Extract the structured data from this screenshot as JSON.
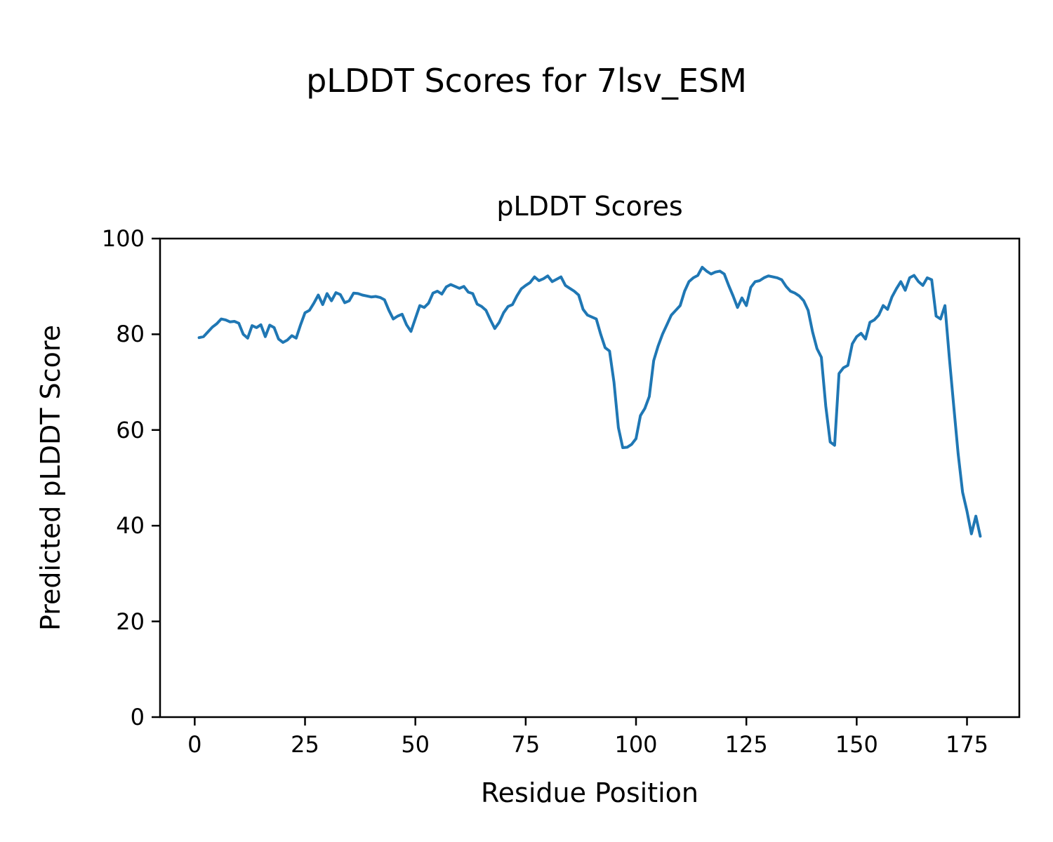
{
  "chart_data": {
    "type": "line",
    "suptitle": "pLDDT Scores for 7lsv_ESM",
    "title": "pLDDT Scores",
    "xlabel": "Residue Position",
    "ylabel": "Predicted pLDDT Score",
    "legend": "none",
    "grid": false,
    "line_color": "#1f77b4",
    "line_width": 4,
    "x_start": 1,
    "xlim": [
      -7.85,
      186.85
    ],
    "ylim": [
      0,
      100
    ],
    "x_ticks": [
      0,
      25,
      50,
      75,
      100,
      125,
      150,
      175
    ],
    "y_ticks": [
      0,
      20,
      40,
      60,
      80,
      100
    ],
    "values": [
      79.3,
      79.5,
      80.5,
      81.5,
      82.2,
      83.2,
      83.0,
      82.6,
      82.7,
      82.3,
      80.0,
      79.2,
      81.8,
      81.4,
      82.0,
      79.5,
      81.9,
      81.4,
      79.0,
      78.3,
      78.8,
      79.7,
      79.2,
      82.0,
      84.5,
      85.0,
      86.5,
      88.2,
      86.2,
      88.5,
      87.0,
      88.7,
      88.3,
      86.6,
      87.0,
      88.6,
      88.5,
      88.2,
      88.0,
      87.8,
      87.9,
      87.7,
      87.2,
      85.0,
      83.2,
      83.8,
      84.2,
      82.0,
      80.6,
      83.3,
      86.0,
      85.6,
      86.5,
      88.6,
      89.0,
      88.4,
      89.9,
      90.4,
      90.0,
      89.6,
      90.0,
      88.8,
      88.5,
      86.3,
      85.8,
      85.0,
      83.0,
      81.2,
      82.5,
      84.5,
      85.8,
      86.2,
      88.0,
      89.5,
      90.2,
      90.8,
      92.0,
      91.2,
      91.6,
      92.2,
      91.0,
      91.5,
      92.0,
      90.2,
      89.6,
      89.0,
      88.2,
      85.2,
      84.0,
      83.6,
      83.2,
      80.0,
      77.2,
      76.5,
      70.0,
      60.5,
      56.3,
      56.4,
      57.0,
      58.2,
      63.0,
      64.5,
      67.0,
      74.5,
      77.5,
      80.0,
      82.0,
      84.0,
      85.0,
      86.0,
      89.0,
      91.0,
      91.8,
      92.3,
      94.0,
      93.2,
      92.6,
      93.0,
      93.2,
      92.6,
      90.2,
      88.0,
      85.6,
      87.6,
      86.0,
      89.8,
      91.0,
      91.2,
      91.8,
      92.2,
      92.0,
      91.8,
      91.4,
      90.0,
      89.0,
      88.6,
      88.0,
      87.0,
      85.0,
      80.5,
      77.0,
      75.2,
      65.0,
      57.5,
      56.8,
      71.8,
      73.0,
      73.5,
      78.0,
      79.5,
      80.2,
      79.0,
      82.5,
      83.0,
      84.0,
      86.0,
      85.2,
      87.8,
      89.5,
      91.0,
      89.2,
      91.8,
      92.3,
      91.0,
      90.2,
      91.8,
      91.4,
      83.8,
      83.2,
      86.0,
      75.0,
      65.0,
      55.0,
      47.0,
      43.0,
      38.3,
      42.0,
      37.8
    ]
  }
}
